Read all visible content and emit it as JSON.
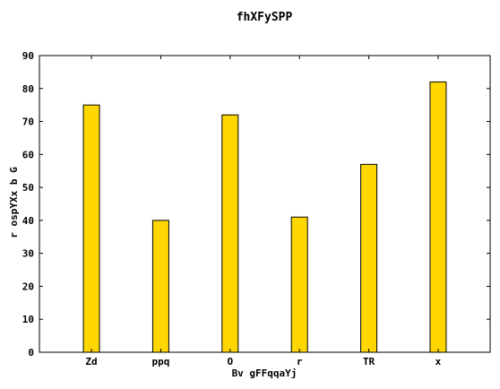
{
  "chart_data": {
    "type": "bar",
    "title": "fhXFySPP",
    "xlabel": "Bv gFFqqaYj",
    "ylabel": "r ospYXx b  G",
    "categories": [
      "Zd",
      "ppq",
      "O",
      "r",
      "TR",
      "x"
    ],
    "values": [
      75,
      40,
      72,
      41,
      57,
      82
    ],
    "ylim": [
      0,
      90
    ],
    "yticks": [
      0,
      10,
      20,
      30,
      40,
      50,
      60,
      70,
      80,
      90
    ],
    "grid": false,
    "legend": "none",
    "colors": {
      "bar": "#ffd700",
      "bar_edge": "#000000",
      "axes": "#000000",
      "background": "#ffffff"
    }
  }
}
